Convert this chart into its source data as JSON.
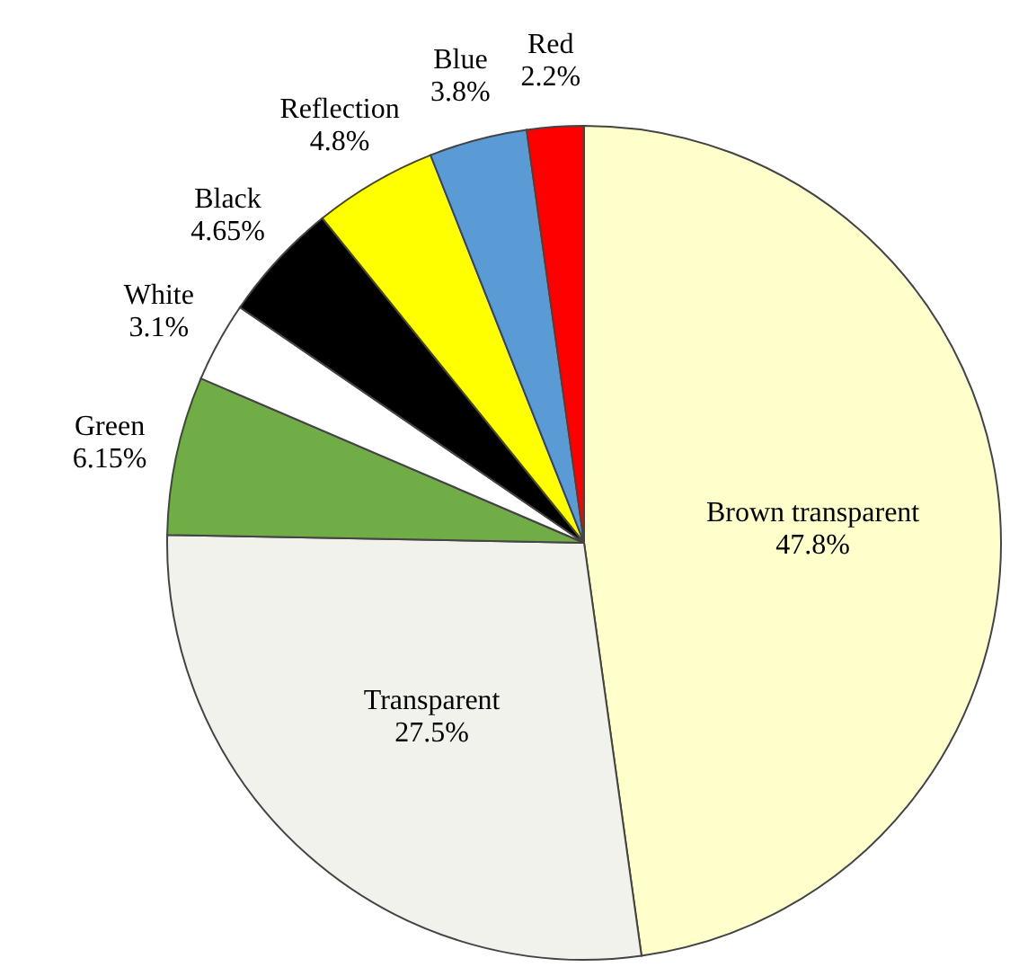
{
  "chart_data": {
    "type": "pie",
    "categories": [
      "Brown transparent",
      "Transparent",
      "Green",
      "White",
      "Black",
      "Reflection",
      "Blue",
      "Red"
    ],
    "values": [
      47.8,
      27.5,
      6.15,
      3.1,
      4.65,
      4.8,
      3.8,
      2.2
    ],
    "colors": [
      "#ffffcc",
      "#f2f2ec",
      "#70ad47",
      "#ffffff",
      "#000000",
      "#ffff00",
      "#5b9bd5",
      "#ff0000"
    ],
    "value_labels": [
      "47.8%",
      "27.5%",
      "6.15%",
      "3.1%",
      "4.65%",
      "4.8%",
      "3.8%",
      "2.2%"
    ]
  }
}
